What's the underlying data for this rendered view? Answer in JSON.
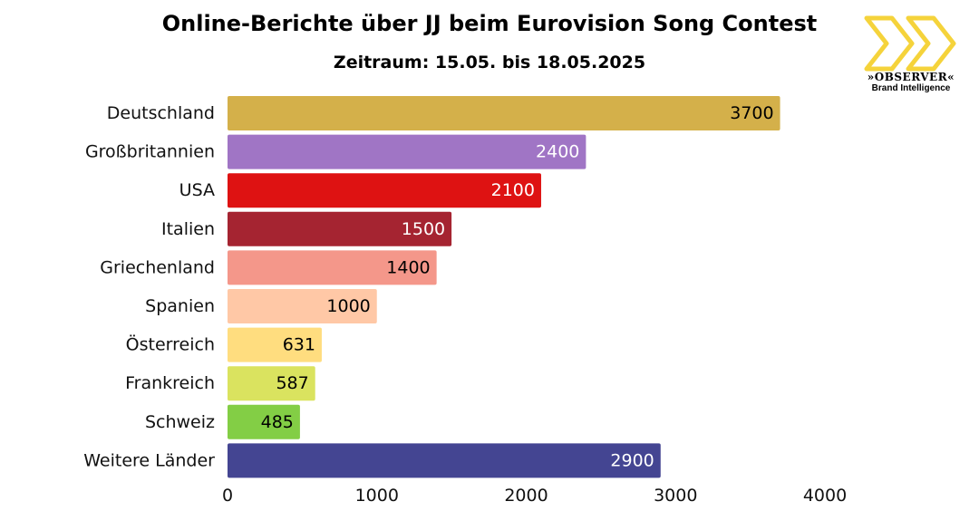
{
  "chart_data": {
    "type": "bar",
    "orientation": "horizontal",
    "title": "Online-Berichte über JJ beim Eurovision Song Contest",
    "subtitle": "Zeitraum: 15.05. bis 18.05.2025",
    "categories": [
      "Deutschland",
      "Großbritannien",
      "USA",
      "Italien",
      "Griechenland",
      "Spanien",
      "Österreich",
      "Frankreich",
      "Schweiz",
      "Weitere Länder"
    ],
    "values": [
      3700,
      2400,
      2100,
      1500,
      1400,
      1000,
      631,
      587,
      485,
      2900
    ],
    "value_labels": [
      "3700",
      "2400",
      "2100",
      "1500",
      "1400",
      "1000",
      "631",
      "587",
      "485",
      "2900"
    ],
    "colors": [
      "#D4B04A",
      "#A075C5",
      "#DE1212",
      "#A52431",
      "#F4978A",
      "#FFC8A6",
      "#FFDD7F",
      "#DAE35F",
      "#83CE45",
      "#444592"
    ],
    "label_colors": [
      "#000000",
      "#ffffff",
      "#ffffff",
      "#ffffff",
      "#000000",
      "#000000",
      "#000000",
      "#000000",
      "#000000",
      "#ffffff"
    ],
    "xlim": [
      0,
      4000
    ],
    "xticks": [
      0,
      1000,
      2000,
      3000,
      4000
    ],
    "xtick_labels": [
      "0",
      "1000",
      "2000",
      "3000",
      "4000"
    ],
    "grid": false,
    "legend": "none"
  },
  "logo": {
    "name": "»OBSERVER«",
    "tagline": "Brand Intelligence",
    "color": "#F5D33B"
  }
}
